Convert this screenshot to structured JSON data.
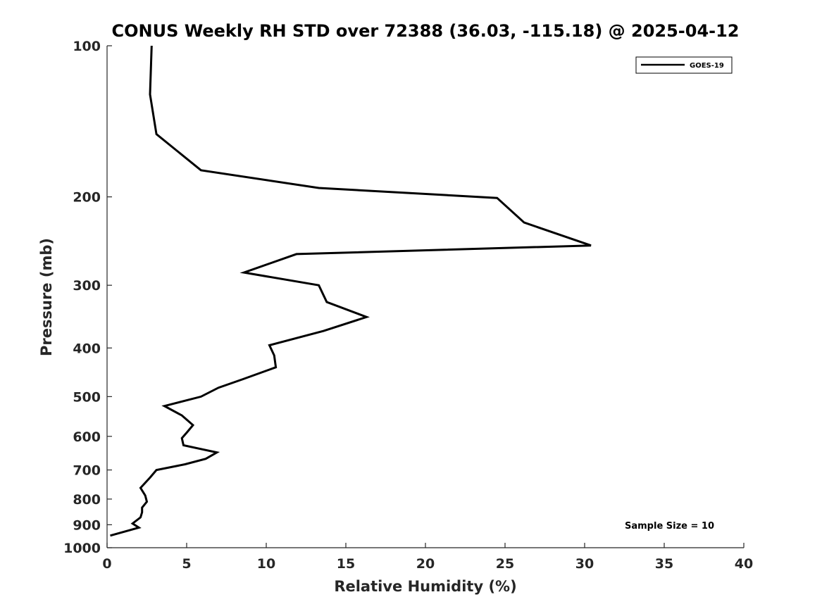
{
  "chart_data": {
    "type": "line",
    "title": "CONUS Weekly RH STD over 72388 (36.03, -115.18) @ 2025-04-12",
    "xlabel": "Relative Humidity (%)",
    "ylabel": "Pressure (mb)",
    "xlim": [
      0,
      40
    ],
    "ylim": [
      1000,
      100
    ],
    "y_scale": "log",
    "y_reversed": true,
    "grid": false,
    "x_ticks": [
      0,
      5,
      10,
      15,
      20,
      25,
      30,
      35,
      40
    ],
    "y_ticks": [
      100,
      200,
      300,
      400,
      500,
      600,
      700,
      800,
      900,
      1000
    ],
    "legend_position": "top-right",
    "annotation": "Sample Size = 10",
    "series": [
      {
        "name": "GOES-19",
        "color": "#000000",
        "points": [
          {
            "x": 2.8,
            "p": 100
          },
          {
            "x": 2.7,
            "p": 125
          },
          {
            "x": 3.1,
            "p": 150
          },
          {
            "x": 5.9,
            "p": 177
          },
          {
            "x": 13.3,
            "p": 192
          },
          {
            "x": 24.5,
            "p": 201
          },
          {
            "x": 26.2,
            "p": 225
          },
          {
            "x": 30.4,
            "p": 250
          },
          {
            "x": 11.9,
            "p": 260
          },
          {
            "x": 8.6,
            "p": 283
          },
          {
            "x": 13.3,
            "p": 300
          },
          {
            "x": 13.8,
            "p": 324
          },
          {
            "x": 16.3,
            "p": 347
          },
          {
            "x": 13.6,
            "p": 370
          },
          {
            "x": 10.2,
            "p": 395
          },
          {
            "x": 10.5,
            "p": 414
          },
          {
            "x": 10.6,
            "p": 437
          },
          {
            "x": 8.5,
            "p": 462
          },
          {
            "x": 7.0,
            "p": 480
          },
          {
            "x": 5.9,
            "p": 500
          },
          {
            "x": 3.6,
            "p": 522
          },
          {
            "x": 4.7,
            "p": 545
          },
          {
            "x": 5.4,
            "p": 570
          },
          {
            "x": 5.0,
            "p": 590
          },
          {
            "x": 4.7,
            "p": 605
          },
          {
            "x": 4.8,
            "p": 625
          },
          {
            "x": 6.9,
            "p": 646
          },
          {
            "x": 6.2,
            "p": 665
          },
          {
            "x": 4.9,
            "p": 682
          },
          {
            "x": 3.1,
            "p": 700
          },
          {
            "x": 2.7,
            "p": 725
          },
          {
            "x": 2.1,
            "p": 760
          },
          {
            "x": 2.4,
            "p": 787
          },
          {
            "x": 2.5,
            "p": 810
          },
          {
            "x": 2.2,
            "p": 832
          },
          {
            "x": 2.2,
            "p": 850
          },
          {
            "x": 2.1,
            "p": 870
          },
          {
            "x": 1.6,
            "p": 895
          },
          {
            "x": 2.0,
            "p": 912
          },
          {
            "x": 0.2,
            "p": 946
          }
        ]
      }
    ]
  }
}
